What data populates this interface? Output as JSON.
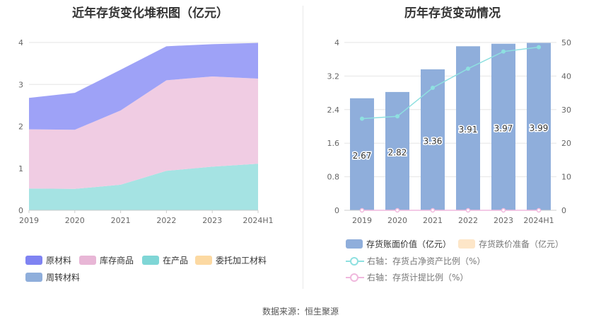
{
  "left_title": "近年存货变化堆积图（亿元）",
  "right_title": "历年存货变动情况",
  "source": "数据来源：恒生聚源",
  "colors": {
    "raw_materials": "#9ea2f7",
    "finished_goods": "#f0cce3",
    "wip": "#a5e3e3",
    "consigned": "#fcd6a0",
    "turnover": "#8faedb",
    "bar": "#8faedb",
    "reserve": "#fde6c8",
    "ratio_line": "#8ee0e0",
    "provision_line": "#f0b8dd"
  },
  "chart_data": [
    {
      "type": "area",
      "stacked": true,
      "title": "近年存货变化堆积图（亿元）",
      "categories": [
        "2019",
        "2020",
        "2021",
        "2022",
        "2023",
        "2024H1"
      ],
      "ylim": [
        0,
        4
      ],
      "yticks": [
        "0",
        "1",
        "2",
        "3",
        "4"
      ],
      "series": [
        {
          "name": "原材料",
          "values": [
            0.75,
            0.88,
            0.97,
            0.81,
            0.77,
            0.85
          ]
        },
        {
          "name": "库存商品",
          "values": [
            1.41,
            1.41,
            1.77,
            2.16,
            2.15,
            2.03
          ]
        },
        {
          "name": "在产品",
          "values": [
            0.52,
            0.51,
            0.61,
            0.94,
            1.04,
            1.11
          ]
        },
        {
          "name": "委托加工材料",
          "values": [
            0,
            0,
            0,
            0,
            0,
            0
          ]
        },
        {
          "name": "周转材料",
          "values": [
            0,
            0,
            0,
            0,
            0,
            0
          ]
        }
      ],
      "legend": [
        "原材料",
        "库存商品",
        "在产品",
        "委托加工材料",
        "周转材料"
      ],
      "legend_position": "bottom"
    },
    {
      "type": "bar",
      "title": "历年存货变动情况",
      "categories": [
        "2019",
        "2020",
        "2021",
        "2022",
        "2023",
        "2024H1"
      ],
      "ylim_left": [
        0,
        4
      ],
      "yticks_left": [
        "0",
        "0.8",
        "1.6",
        "2.4",
        "3.2",
        "4"
      ],
      "ylim_right": [
        0,
        50
      ],
      "yticks_right": [
        "0",
        "10",
        "20",
        "30",
        "40",
        "50"
      ],
      "series": [
        {
          "name": "存货账面价值（亿元）",
          "axis": "left",
          "type": "bar",
          "values": [
            2.67,
            2.82,
            3.36,
            3.91,
            3.97,
            3.99
          ],
          "labels": [
            "2.67",
            "2.82",
            "3.36",
            "3.91",
            "3.97",
            "3.99"
          ]
        },
        {
          "name": "存货跌价准备（亿元）",
          "axis": "left",
          "type": "bar",
          "values": [
            0,
            0,
            0,
            0,
            0,
            0
          ]
        },
        {
          "name": "右轴：存货占净资产比例（%）",
          "axis": "right",
          "type": "line",
          "values": [
            27.3,
            28.0,
            36.5,
            42.2,
            47.3,
            48.6
          ]
        },
        {
          "name": "右轴：存货计提比例（%）",
          "axis": "right",
          "type": "line",
          "values": [
            0,
            0,
            0,
            0,
            0,
            0
          ]
        }
      ],
      "legend_position": "bottom"
    }
  ]
}
